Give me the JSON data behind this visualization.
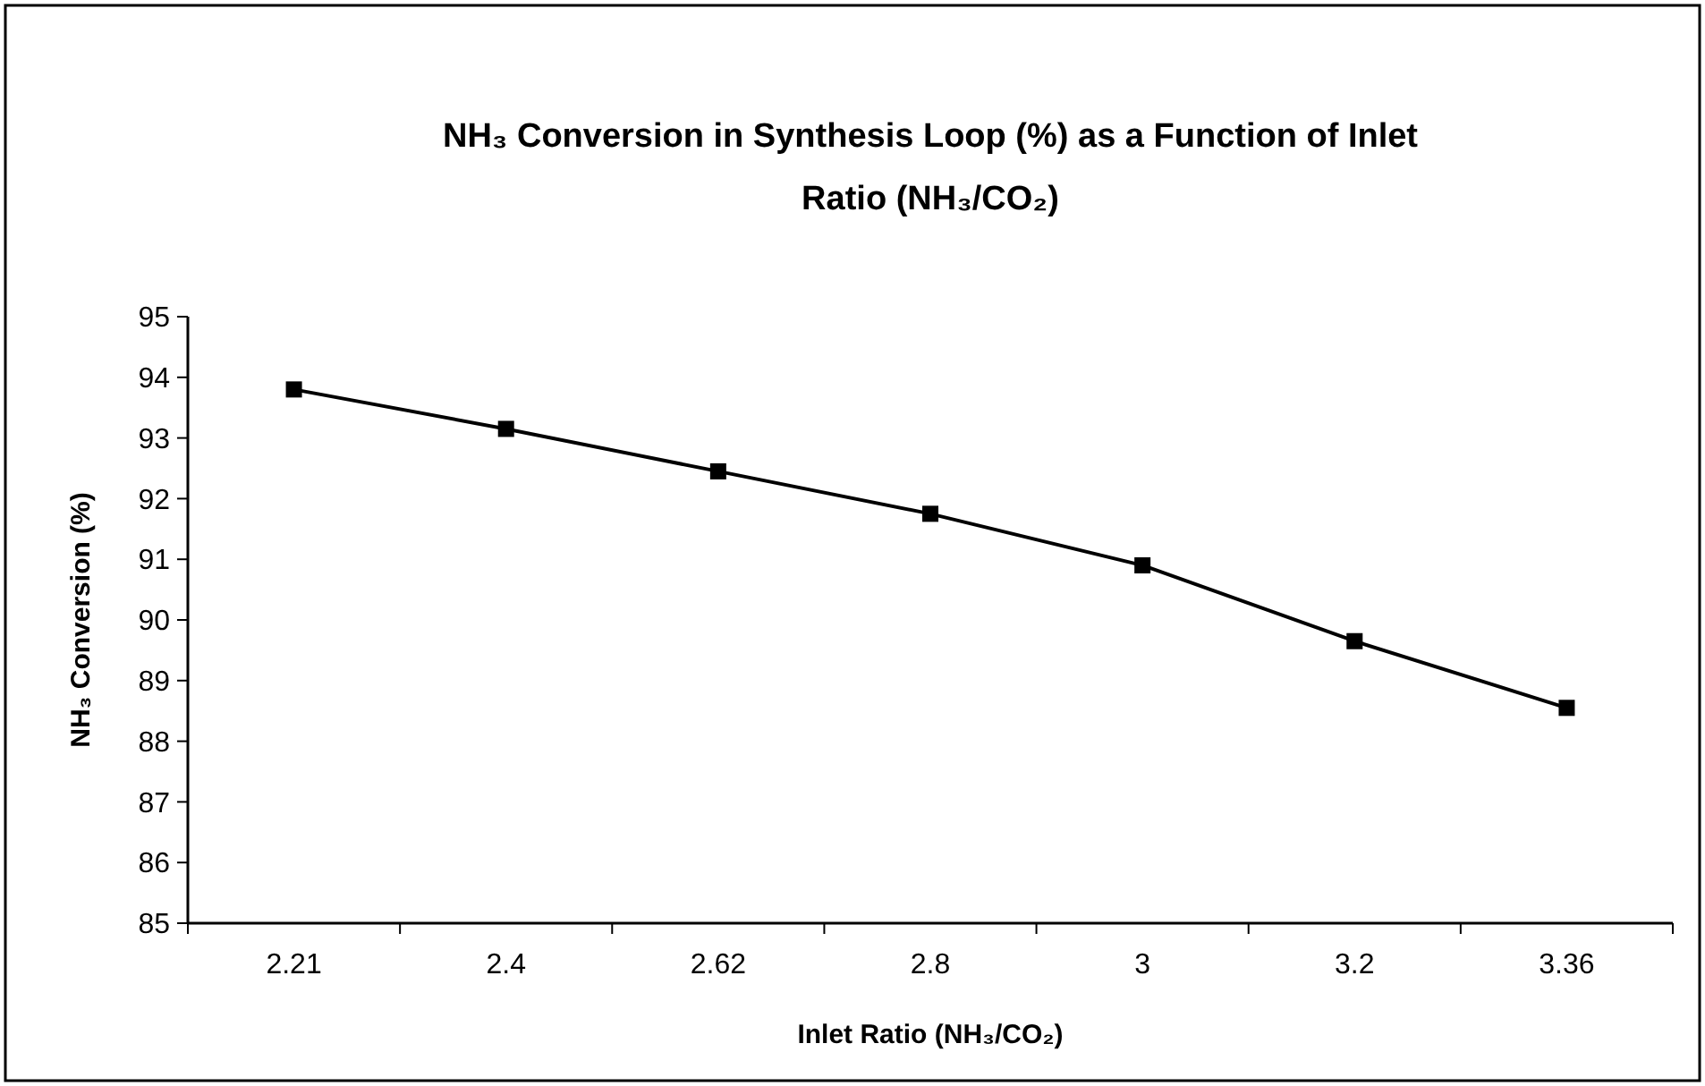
{
  "chart_data": {
    "type": "line",
    "title": "NH₃ Conversion in Synthesis Loop (%) as a Function of Inlet Ratio (NH₃/CO₂)",
    "xlabel": "Inlet Ratio (NH₃/CO₂)",
    "ylabel": "NH₃ Conversion (%)",
    "categories": [
      "2.21",
      "2.4",
      "2.62",
      "2.8",
      "3",
      "3.2",
      "3.36"
    ],
    "series": [
      {
        "color": "#000000",
        "values": [
          93.8,
          93.15,
          92.45,
          91.75,
          90.9,
          89.65,
          88.55
        ]
      }
    ],
    "ylim": [
      85,
      95
    ],
    "yticks": [
      85,
      86,
      87,
      88,
      89,
      90,
      91,
      92,
      93,
      94,
      95
    ],
    "marker": "square",
    "line_style": "solid",
    "grid": false
  }
}
